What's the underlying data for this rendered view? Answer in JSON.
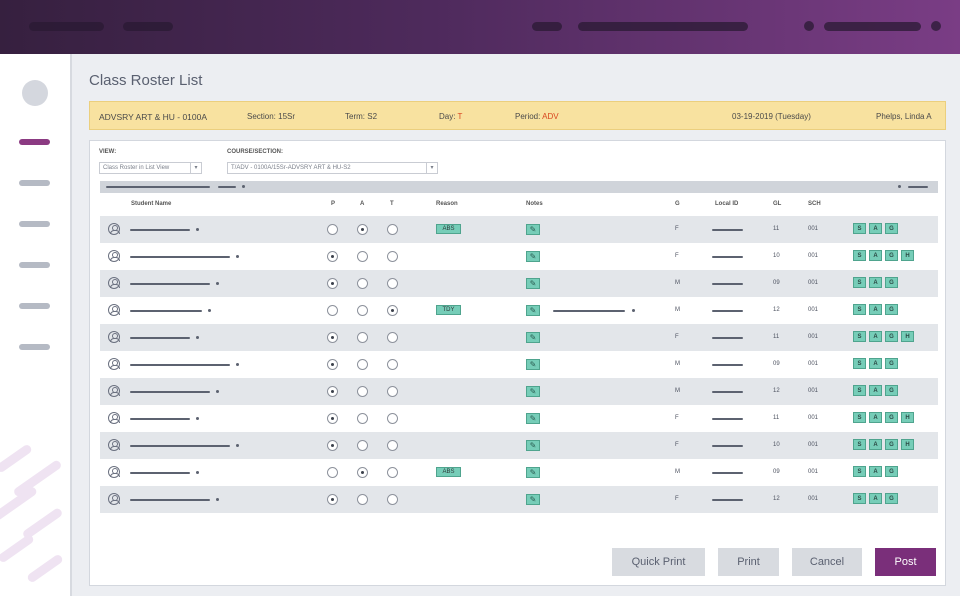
{
  "page": {
    "title": "Class Roster List"
  },
  "info": {
    "class": "ADVSRY ART & HU - 0100A",
    "section_label": "Section:",
    "section_value": "15Sr",
    "term_label": "Term:",
    "term_value": "S2",
    "day_label": "Day:",
    "day_value": "T",
    "period_label": "Period:",
    "period_value": "ADV",
    "date": "03-19-2019 (Tuesday)",
    "teacher": "Phelps, Linda A"
  },
  "filters": {
    "view_label": "VIEW:",
    "view_value": "Class Roster in List View",
    "course_label": "COURSE/SECTION:",
    "course_value": "T/ADV - 0100A/15Sr-ADVSRY ART & HU-S2"
  },
  "columns": {
    "student_name": "Student Name",
    "p": "P",
    "a": "A",
    "t": "T",
    "reason": "Reason",
    "notes": "Notes",
    "g": "G",
    "local_id": "Local ID",
    "gl": "GL",
    "sch": "SCH"
  },
  "rows": [
    {
      "attendance": "A",
      "reason": "ABS",
      "note_text": false,
      "gender": "F",
      "gl": "11",
      "sch": "001",
      "chips": [
        "S",
        "A",
        "G"
      ]
    },
    {
      "attendance": "P",
      "reason": "",
      "note_text": false,
      "gender": "F",
      "gl": "10",
      "sch": "001",
      "chips": [
        "S",
        "A",
        "G",
        "H"
      ]
    },
    {
      "attendance": "P",
      "reason": "",
      "note_text": false,
      "gender": "M",
      "gl": "09",
      "sch": "001",
      "chips": [
        "S",
        "A",
        "G"
      ]
    },
    {
      "attendance": "T",
      "reason": "TDY",
      "note_text": true,
      "gender": "M",
      "gl": "12",
      "sch": "001",
      "chips": [
        "S",
        "A",
        "G"
      ]
    },
    {
      "attendance": "P",
      "reason": "",
      "note_text": false,
      "gender": "F",
      "gl": "11",
      "sch": "001",
      "chips": [
        "S",
        "A",
        "G",
        "H"
      ]
    },
    {
      "attendance": "P",
      "reason": "",
      "note_text": false,
      "gender": "M",
      "gl": "09",
      "sch": "001",
      "chips": [
        "S",
        "A",
        "G"
      ]
    },
    {
      "attendance": "P",
      "reason": "",
      "note_text": false,
      "gender": "M",
      "gl": "12",
      "sch": "001",
      "chips": [
        "S",
        "A",
        "G"
      ]
    },
    {
      "attendance": "P",
      "reason": "",
      "note_text": false,
      "gender": "F",
      "gl": "11",
      "sch": "001",
      "chips": [
        "S",
        "A",
        "G",
        "H"
      ]
    },
    {
      "attendance": "P",
      "reason": "",
      "note_text": false,
      "gender": "F",
      "gl": "10",
      "sch": "001",
      "chips": [
        "S",
        "A",
        "G",
        "H"
      ]
    },
    {
      "attendance": "A",
      "reason": "ABS",
      "note_text": false,
      "gender": "M",
      "gl": "09",
      "sch": "001",
      "chips": [
        "S",
        "A",
        "G"
      ]
    },
    {
      "attendance": "P",
      "reason": "",
      "note_text": false,
      "gender": "F",
      "gl": "12",
      "sch": "001",
      "chips": [
        "S",
        "A",
        "G"
      ]
    }
  ],
  "actions": {
    "quick_print": "Quick Print",
    "print": "Print",
    "cancel": "Cancel",
    "post": "Post"
  },
  "colors": {
    "accent": "#7a2f7a",
    "info_bg": "#f8e2a0",
    "chip": "#76cdb8",
    "alert": "#d8451f"
  }
}
